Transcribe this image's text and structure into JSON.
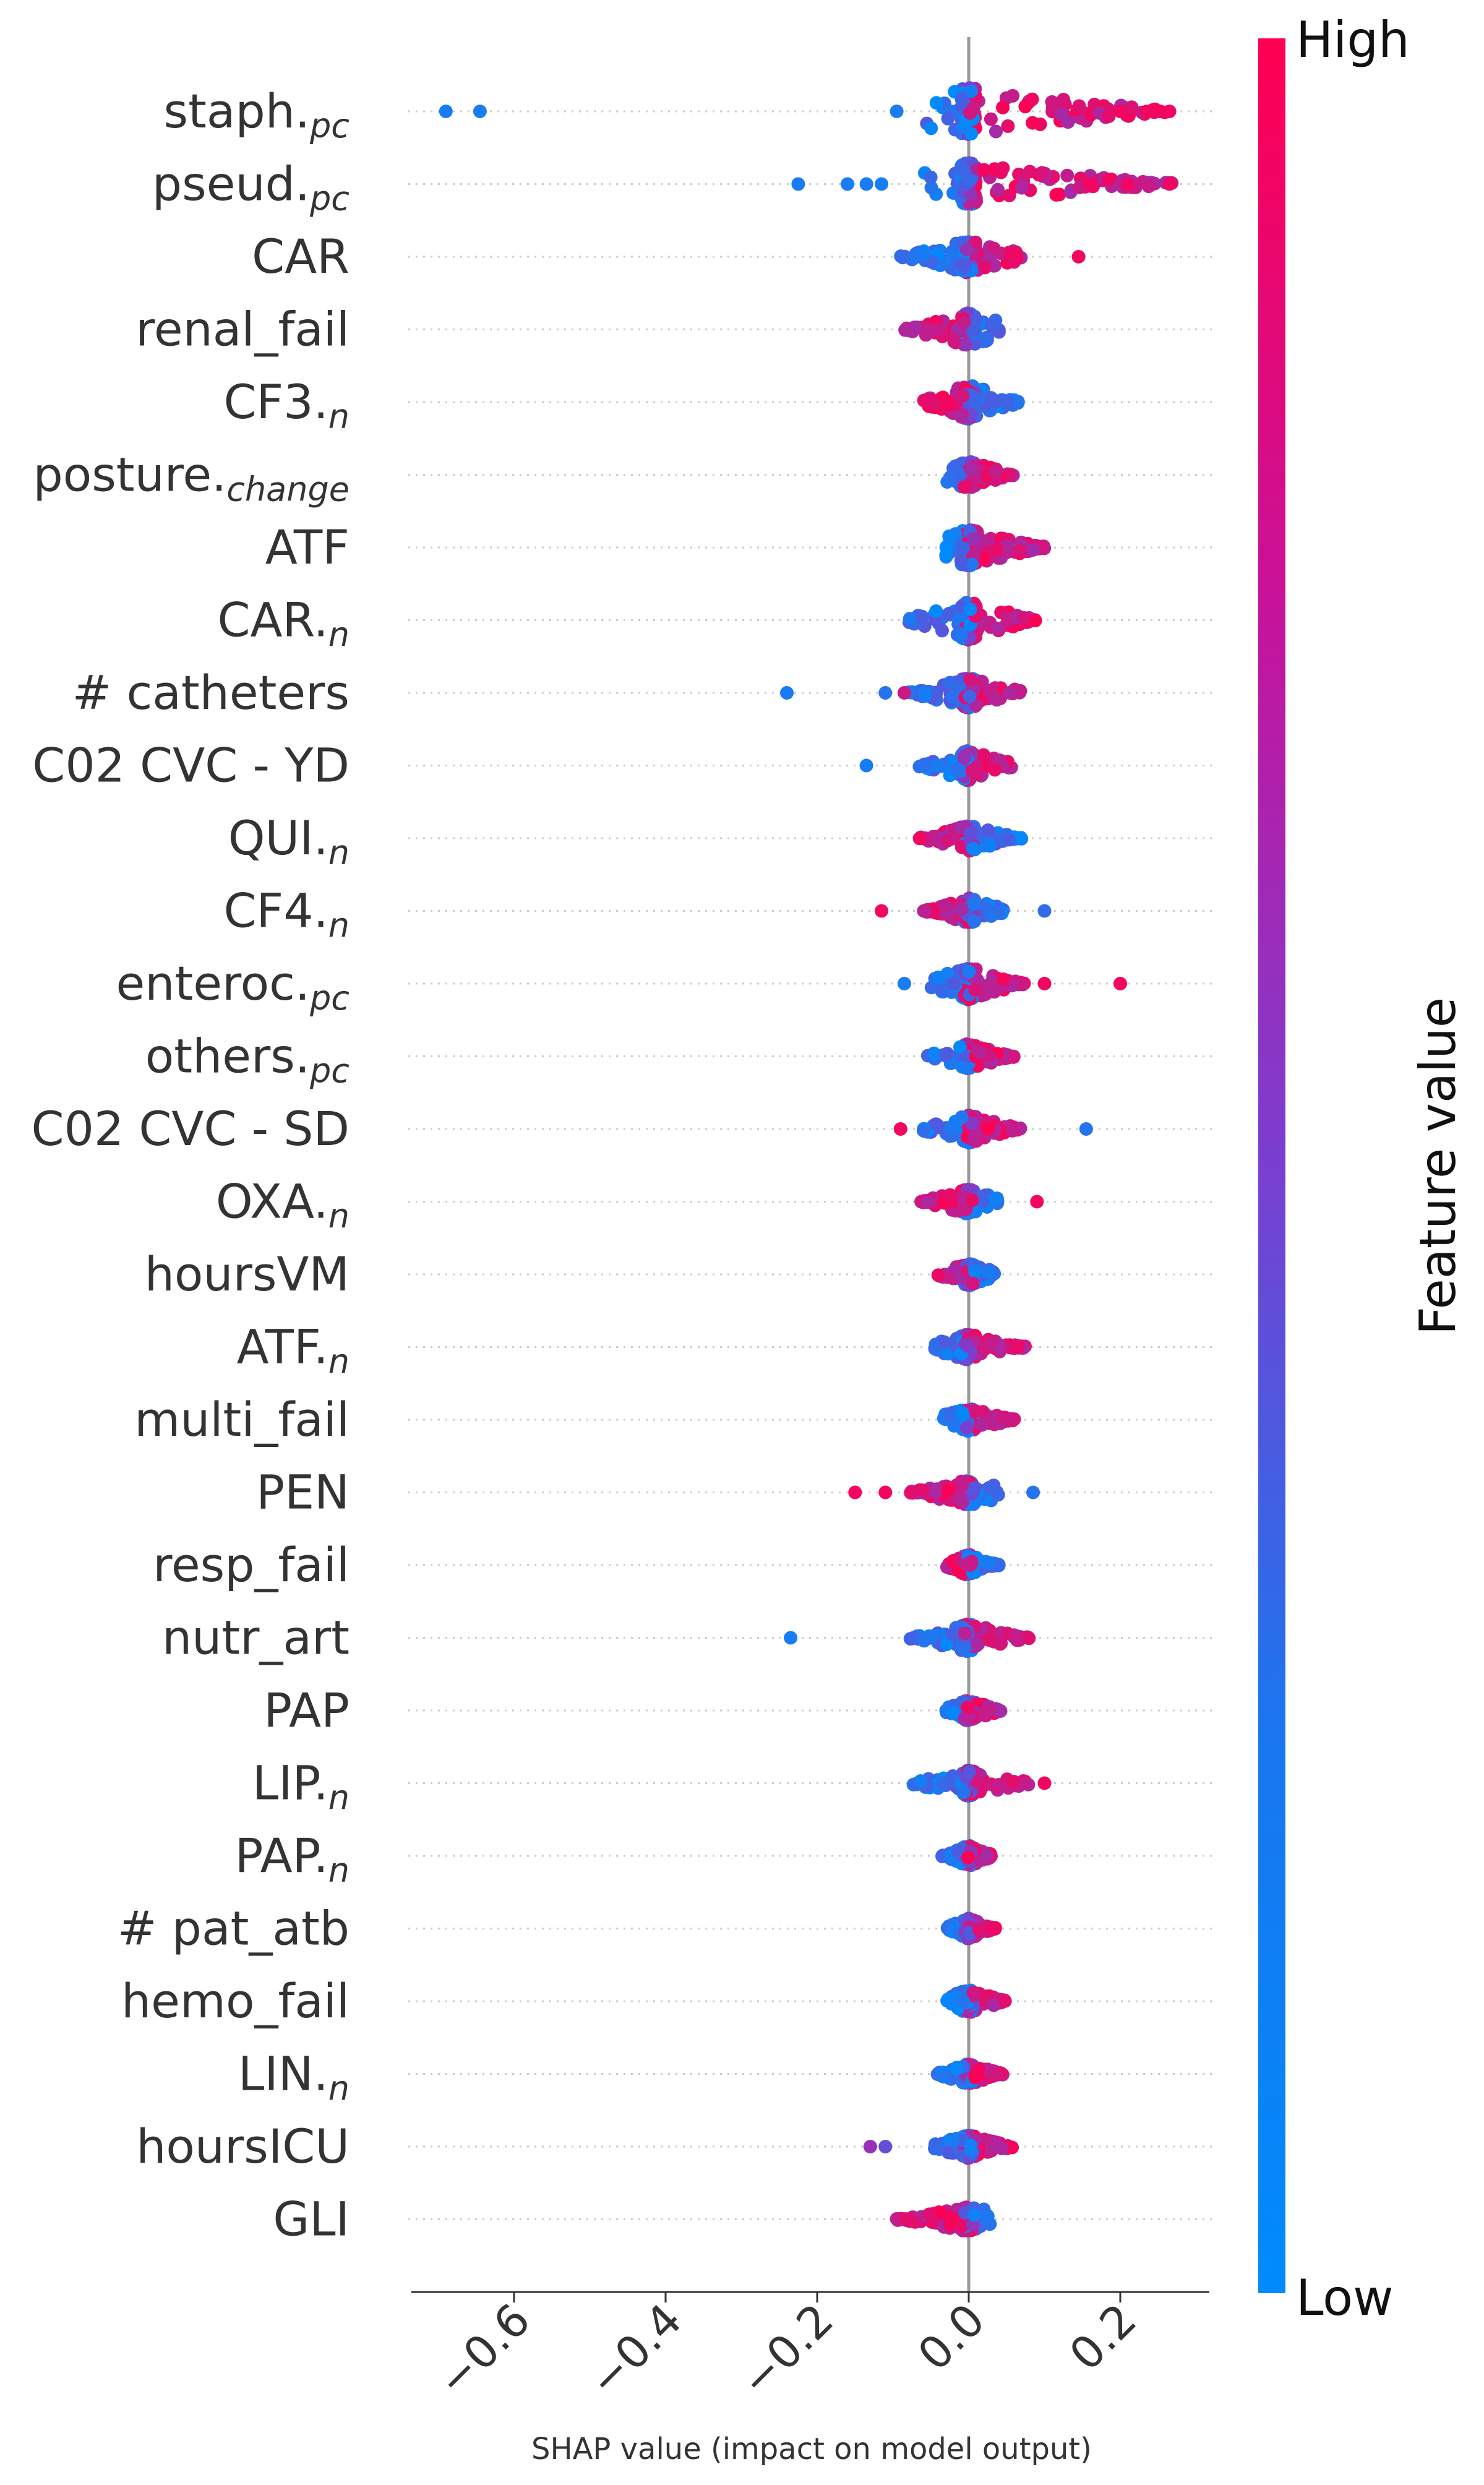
{
  "chart_data": {
    "type": "scatter",
    "subtype": "shap-beeswarm",
    "xlabel": "SHAP value (impact on model output)",
    "xticks": [
      -0.6,
      -0.4,
      -0.2,
      0.0,
      0.2
    ],
    "xtick_labels": [
      "−0.6",
      "−0.4",
      "−0.2",
      "0.0",
      "0.2"
    ],
    "xlim": [
      -0.73,
      0.32
    ],
    "colorbar": {
      "title": "Feature value",
      "high_label": "High",
      "low_label": "Low",
      "high_color": "#ff0052",
      "low_color": "#008bfb"
    },
    "features": [
      {
        "name": "staph.",
        "sub": "pc",
        "min": -0.06,
        "max": 0.27,
        "outliers": [
          {
            "x": -0.69,
            "v": 0.1
          },
          {
            "x": -0.645,
            "v": 0.1
          },
          {
            "x": -0.095,
            "v": 0.1
          },
          {
            "x": 0.2,
            "v": 0.95
          },
          {
            "x": 0.235,
            "v": 0.95
          },
          {
            "x": 0.265,
            "v": 0.95
          }
        ],
        "low_side": -1,
        "spread": 1.0
      },
      {
        "name": "pseud.",
        "sub": "pc",
        "min": -0.06,
        "max": 0.27,
        "outliers": [
          {
            "x": -0.225,
            "v": 0.1
          },
          {
            "x": -0.16,
            "v": 0.1
          },
          {
            "x": -0.135,
            "v": 0.1
          },
          {
            "x": -0.115,
            "v": 0.1
          },
          {
            "x": 0.16,
            "v": 0.95
          },
          {
            "x": 0.21,
            "v": 0.95
          },
          {
            "x": 0.265,
            "v": 0.95
          }
        ],
        "low_side": -1,
        "spread": 0.9
      },
      {
        "name": "CAR",
        "sub": "",
        "min": -0.09,
        "max": 0.07,
        "outliers": [
          {
            "x": 0.145,
            "v": 0.95
          }
        ],
        "low_side": -1,
        "spread": 0.7
      },
      {
        "name": "renal_fail",
        "sub": "",
        "min": -0.085,
        "max": 0.04,
        "outliers": [],
        "low_side": 1,
        "spread": 0.7
      },
      {
        "name": "CF3.",
        "sub": "n",
        "min": -0.06,
        "max": 0.07,
        "outliers": [],
        "low_side": 1,
        "spread": 0.75
      },
      {
        "name": "posture.",
        "sub": "change",
        "min": -0.03,
        "max": 0.06,
        "outliers": [],
        "low_side": -1,
        "spread": 0.6
      },
      {
        "name": "ATF",
        "sub": "",
        "min": -0.03,
        "max": 0.1,
        "outliers": [],
        "low_side": -1,
        "spread": 0.8
      },
      {
        "name": "CAR.",
        "sub": "n",
        "min": -0.08,
        "max": 0.09,
        "outliers": [],
        "low_side": -1,
        "spread": 0.85
      },
      {
        "name": "# catheters",
        "sub": "",
        "min": -0.08,
        "max": 0.07,
        "outliers": [
          {
            "x": -0.24,
            "v": 0.1
          },
          {
            "x": -0.11,
            "v": 0.15
          },
          {
            "x": -0.085,
            "v": 0.8
          }
        ],
        "low_side": -1,
        "spread": 0.65
      },
      {
        "name": "C02 CVC - YD",
        "sub": "",
        "min": -0.07,
        "max": 0.06,
        "outliers": [
          {
            "x": -0.135,
            "v": 0.1
          }
        ],
        "low_side": -1,
        "spread": 0.65
      },
      {
        "name": "QUI.",
        "sub": "n",
        "min": -0.065,
        "max": 0.07,
        "outliers": [],
        "low_side": 1,
        "spread": 0.55
      },
      {
        "name": "CF4.",
        "sub": "n",
        "min": -0.06,
        "max": 0.05,
        "outliers": [
          {
            "x": -0.115,
            "v": 0.95
          },
          {
            "x": 0.1,
            "v": 0.2
          }
        ],
        "low_side": 1,
        "spread": 0.55
      },
      {
        "name": "enteroc.",
        "sub": "pc",
        "min": -0.05,
        "max": 0.075,
        "outliers": [
          {
            "x": -0.085,
            "v": 0.1
          },
          {
            "x": 0.1,
            "v": 0.95
          },
          {
            "x": 0.2,
            "v": 0.95
          }
        ],
        "low_side": -1,
        "spread": 0.7
      },
      {
        "name": "others.",
        "sub": "pc",
        "min": -0.055,
        "max": 0.06,
        "outliers": [],
        "low_side": -1,
        "spread": 0.55
      },
      {
        "name": "C02 CVC - SD",
        "sub": "",
        "min": -0.06,
        "max": 0.07,
        "outliers": [
          {
            "x": -0.09,
            "v": 0.95
          },
          {
            "x": 0.155,
            "v": 0.15
          }
        ],
        "low_side": -1,
        "spread": 0.6
      },
      {
        "name": "OXA.",
        "sub": "n",
        "min": -0.065,
        "max": 0.04,
        "outliers": [
          {
            "x": 0.09,
            "v": 0.95
          }
        ],
        "low_side": 1,
        "spread": 0.55
      },
      {
        "name": "hoursVM",
        "sub": "",
        "min": -0.045,
        "max": 0.035,
        "outliers": [],
        "low_side": 1,
        "spread": 0.5
      },
      {
        "name": "ATF.",
        "sub": "n",
        "min": -0.045,
        "max": 0.075,
        "outliers": [],
        "low_side": -1,
        "spread": 0.55
      },
      {
        "name": "multi_fail",
        "sub": "",
        "min": -0.035,
        "max": 0.06,
        "outliers": [],
        "low_side": -1,
        "spread": 0.5
      },
      {
        "name": "PEN",
        "sub": "",
        "min": -0.08,
        "max": 0.045,
        "outliers": [
          {
            "x": -0.15,
            "v": 0.95
          },
          {
            "x": -0.11,
            "v": 0.95
          },
          {
            "x": 0.085,
            "v": 0.15
          }
        ],
        "low_side": 1,
        "spread": 0.55
      },
      {
        "name": "resp_fail",
        "sub": "",
        "min": -0.03,
        "max": 0.04,
        "outliers": [],
        "low_side": 1,
        "spread": 0.45
      },
      {
        "name": "nutr_art",
        "sub": "",
        "min": -0.08,
        "max": 0.08,
        "outliers": [
          {
            "x": -0.235,
            "v": 0.1
          }
        ],
        "low_side": -1,
        "spread": 0.6
      },
      {
        "name": "PAP",
        "sub": "",
        "min": -0.03,
        "max": 0.045,
        "outliers": [],
        "low_side": -1,
        "spread": 0.45
      },
      {
        "name": "LIP.",
        "sub": "n",
        "min": -0.075,
        "max": 0.09,
        "outliers": [
          {
            "x": 0.1,
            "v": 0.95
          }
        ],
        "low_side": -1,
        "spread": 0.55
      },
      {
        "name": "PAP.",
        "sub": "n",
        "min": -0.035,
        "max": 0.03,
        "outliers": [],
        "low_side": -1,
        "spread": 0.45
      },
      {
        "name": "# pat_atb",
        "sub": "",
        "min": -0.03,
        "max": 0.035,
        "outliers": [],
        "low_side": -1,
        "spread": 0.45
      },
      {
        "name": "hemo_fail",
        "sub": "",
        "min": -0.03,
        "max": 0.05,
        "outliers": [],
        "low_side": -1,
        "spread": 0.5
      },
      {
        "name": "LIN.",
        "sub": "n",
        "min": -0.045,
        "max": 0.045,
        "outliers": [],
        "low_side": -1,
        "spread": 0.45
      },
      {
        "name": "hoursICU",
        "sub": "",
        "min": -0.05,
        "max": 0.06,
        "outliers": [
          {
            "x": -0.13,
            "v": 0.6
          },
          {
            "x": -0.11,
            "v": 0.4
          }
        ],
        "low_side": -1,
        "spread": 0.5
      },
      {
        "name": "GLI",
        "sub": "",
        "min": -0.095,
        "max": 0.03,
        "outliers": [],
        "low_side": 1,
        "spread": 0.55
      }
    ]
  }
}
